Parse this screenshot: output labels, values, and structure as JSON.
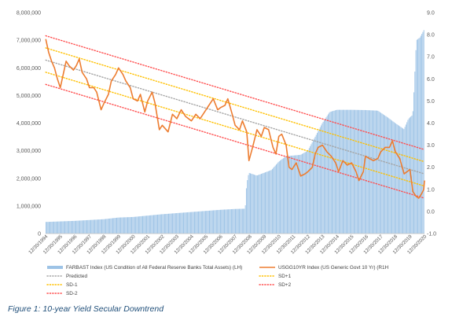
{
  "caption": "Figure 1: 10-year Yield Secular Downtrend",
  "chart_data": {
    "type": "bar+line",
    "left_axis": {
      "min": 0,
      "max": 8000000,
      "step": 1000000,
      "tick_labels": [
        "0",
        "1,000,000",
        "2,000,000",
        "3,000,000",
        "4,000,000",
        "5,000,000",
        "6,000,000",
        "7,000,000",
        "8,000,000"
      ]
    },
    "right_axis": {
      "min": -1.0,
      "max": 9.0,
      "step": 1.0,
      "tick_labels": [
        "-1.0",
        "0.0",
        "1.0",
        "2.0",
        "3.0",
        "4.0",
        "5.0",
        "6.0",
        "7.0",
        "8.0",
        "9.0"
      ]
    },
    "x_range": [
      1994.99,
      2021.0
    ],
    "x_tick_labels": [
      "12/30/1994",
      "12/30/1995",
      "12/30/1996",
      "12/30/1997",
      "12/30/1998",
      "12/30/1999",
      "12/30/2000",
      "12/30/2001",
      "12/30/2002",
      "12/30/2003",
      "12/30/2004",
      "12/30/2005",
      "12/30/2006",
      "12/30/2007",
      "12/30/2008",
      "12/30/2009",
      "12/30/2010",
      "12/30/2011",
      "12/30/2012",
      "12/30/2013",
      "12/30/2014",
      "12/30/2015",
      "12/30/2016",
      "12/30/2017",
      "12/30/2018",
      "12/30/2019",
      "12/30/2020"
    ],
    "series": [
      {
        "name": "FARBAST Index (US Condition of All Federal Reserve Banks Total Assets) (LH)",
        "type": "bar",
        "axis": "left",
        "color": "#9dc3e6",
        "points": [
          [
            1995.0,
            420000
          ],
          [
            1996.0,
            440000
          ],
          [
            1997.0,
            460000
          ],
          [
            1998.0,
            490000
          ],
          [
            1999.0,
            520000
          ],
          [
            2000.0,
            580000
          ],
          [
            2001.0,
            600000
          ],
          [
            2002.0,
            650000
          ],
          [
            2003.0,
            700000
          ],
          [
            2004.0,
            740000
          ],
          [
            2005.0,
            780000
          ],
          [
            2006.0,
            820000
          ],
          [
            2007.0,
            860000
          ],
          [
            2008.0,
            890000
          ],
          [
            2008.7,
            900000
          ],
          [
            2008.8,
            1800000
          ],
          [
            2008.95,
            2200000
          ],
          [
            2009.5,
            2100000
          ],
          [
            2010.5,
            2300000
          ],
          [
            2011.0,
            2600000
          ],
          [
            2011.5,
            2800000
          ],
          [
            2012.5,
            2850000
          ],
          [
            2013.0,
            3000000
          ],
          [
            2013.5,
            3500000
          ],
          [
            2014.0,
            4000000
          ],
          [
            2014.5,
            4400000
          ],
          [
            2015.0,
            4480000
          ],
          [
            2016.0,
            4480000
          ],
          [
            2017.0,
            4470000
          ],
          [
            2017.8,
            4450000
          ],
          [
            2018.5,
            4200000
          ],
          [
            2019.0,
            4000000
          ],
          [
            2019.6,
            3780000
          ],
          [
            2019.9,
            4150000
          ],
          [
            2020.2,
            4300000
          ],
          [
            2020.3,
            5300000
          ],
          [
            2020.45,
            7000000
          ],
          [
            2020.7,
            7100000
          ],
          [
            2020.9,
            7300000
          ],
          [
            2021.0,
            7400000
          ]
        ]
      },
      {
        "name": "USGG10YR Index (US Generic Govt 10 Yr) (R1H",
        "type": "line",
        "axis": "right",
        "color": "#ed7d31",
        "points": [
          [
            1995.0,
            7.8
          ],
          [
            1995.2,
            7.2
          ],
          [
            1995.4,
            6.8
          ],
          [
            1995.6,
            6.5
          ],
          [
            1995.8,
            6.0
          ],
          [
            1996.0,
            5.6
          ],
          [
            1996.2,
            6.2
          ],
          [
            1996.4,
            6.8
          ],
          [
            1996.6,
            6.6
          ],
          [
            1996.9,
            6.4
          ],
          [
            1997.1,
            6.6
          ],
          [
            1997.3,
            6.9
          ],
          [
            1997.5,
            6.3
          ],
          [
            1997.8,
            6.0
          ],
          [
            1998.0,
            5.6
          ],
          [
            1998.3,
            5.6
          ],
          [
            1998.5,
            5.4
          ],
          [
            1998.8,
            4.6
          ],
          [
            1999.0,
            4.9
          ],
          [
            1999.3,
            5.3
          ],
          [
            1999.5,
            5.9
          ],
          [
            1999.8,
            6.2
          ],
          [
            2000.0,
            6.5
          ],
          [
            2000.3,
            6.2
          ],
          [
            2000.5,
            5.9
          ],
          [
            2000.8,
            5.6
          ],
          [
            2001.0,
            5.1
          ],
          [
            2001.3,
            5.0
          ],
          [
            2001.5,
            5.3
          ],
          [
            2001.8,
            4.5
          ],
          [
            2002.0,
            5.0
          ],
          [
            2002.3,
            5.4
          ],
          [
            2002.5,
            4.9
          ],
          [
            2002.8,
            3.7
          ],
          [
            2003.0,
            3.9
          ],
          [
            2003.4,
            3.6
          ],
          [
            2003.7,
            4.4
          ],
          [
            2004.0,
            4.2
          ],
          [
            2004.3,
            4.6
          ],
          [
            2004.6,
            4.3
          ],
          [
            2005.0,
            4.1
          ],
          [
            2005.3,
            4.4
          ],
          [
            2005.6,
            4.2
          ],
          [
            2005.9,
            4.5
          ],
          [
            2006.2,
            4.8
          ],
          [
            2006.5,
            5.1
          ],
          [
            2006.8,
            4.6
          ],
          [
            2007.0,
            4.7
          ],
          [
            2007.3,
            4.8
          ],
          [
            2007.5,
            5.1
          ],
          [
            2007.8,
            4.4
          ],
          [
            2008.0,
            3.9
          ],
          [
            2008.3,
            3.7
          ],
          [
            2008.5,
            4.1
          ],
          [
            2008.8,
            3.6
          ],
          [
            2008.95,
            2.3
          ],
          [
            2009.2,
            2.9
          ],
          [
            2009.5,
            3.7
          ],
          [
            2009.8,
            3.4
          ],
          [
            2010.0,
            3.8
          ],
          [
            2010.3,
            3.7
          ],
          [
            2010.6,
            2.9
          ],
          [
            2010.8,
            2.6
          ],
          [
            2011.0,
            3.4
          ],
          [
            2011.2,
            3.5
          ],
          [
            2011.5,
            3.0
          ],
          [
            2011.7,
            2.0
          ],
          [
            2011.9,
            1.9
          ],
          [
            2012.2,
            2.2
          ],
          [
            2012.5,
            1.6
          ],
          [
            2012.8,
            1.7
          ],
          [
            2013.0,
            1.8
          ],
          [
            2013.3,
            2.0
          ],
          [
            2013.5,
            2.6
          ],
          [
            2013.7,
            2.9
          ],
          [
            2014.0,
            3.0
          ],
          [
            2014.3,
            2.7
          ],
          [
            2014.6,
            2.5
          ],
          [
            2014.9,
            2.2
          ],
          [
            2015.1,
            1.8
          ],
          [
            2015.4,
            2.3
          ],
          [
            2015.7,
            2.1
          ],
          [
            2016.0,
            2.2
          ],
          [
            2016.3,
            1.8
          ],
          [
            2016.5,
            1.4
          ],
          [
            2016.8,
            1.8
          ],
          [
            2016.95,
            2.5
          ],
          [
            2017.2,
            2.4
          ],
          [
            2017.5,
            2.3
          ],
          [
            2017.8,
            2.4
          ],
          [
            2018.0,
            2.7
          ],
          [
            2018.3,
            2.9
          ],
          [
            2018.6,
            2.9
          ],
          [
            2018.8,
            3.2
          ],
          [
            2019.0,
            2.7
          ],
          [
            2019.3,
            2.4
          ],
          [
            2019.6,
            1.7
          ],
          [
            2019.8,
            1.8
          ],
          [
            2020.0,
            1.9
          ],
          [
            2020.2,
            0.9
          ],
          [
            2020.4,
            0.7
          ],
          [
            2020.6,
            0.6
          ],
          [
            2020.8,
            0.8
          ],
          [
            2020.95,
            1.0
          ],
          [
            2021.0,
            1.4
          ]
        ]
      },
      {
        "name": "Predicted",
        "type": "dotted-line",
        "axis": "right",
        "color": "#a5a5a5",
        "points": [
          [
            1995.0,
            6.85
          ],
          [
            2021.0,
            1.7
          ]
        ]
      },
      {
        "name": "SD+1",
        "type": "dotted-line",
        "axis": "right",
        "color": "#ffc000",
        "points": [
          [
            1995.0,
            7.4
          ],
          [
            2021.0,
            2.25
          ]
        ]
      },
      {
        "name": "SD-1",
        "type": "dotted-line",
        "axis": "right",
        "color": "#ffc000",
        "points": [
          [
            1995.0,
            6.3
          ],
          [
            2021.0,
            1.15
          ]
        ]
      },
      {
        "name": "SD+2",
        "type": "dotted-line",
        "axis": "right",
        "color": "#ff5050",
        "points": [
          [
            1995.0,
            7.95
          ],
          [
            2021.0,
            2.8
          ]
        ]
      },
      {
        "name": "SD-2",
        "type": "dotted-line",
        "axis": "right",
        "color": "#ff5050",
        "points": [
          [
            1995.0,
            5.75
          ],
          [
            2021.0,
            0.6
          ]
        ]
      }
    ]
  }
}
